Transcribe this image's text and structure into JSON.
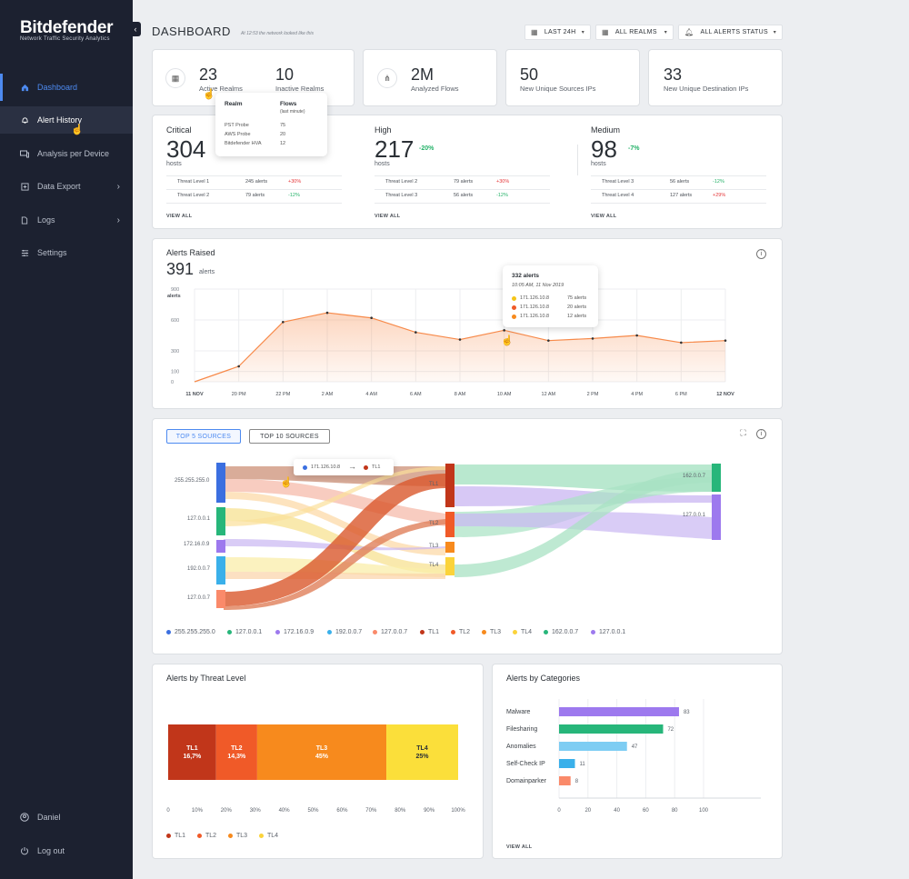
{
  "brand": {
    "name": "Bitdefender",
    "subtitle": "Network Traffic Security Analytics"
  },
  "sidebar": {
    "items": [
      {
        "label": "Dashboard",
        "icon": "home-icon"
      },
      {
        "label": "Alert History",
        "icon": "bell-icon"
      },
      {
        "label": "Analysis per Device",
        "icon": "device-icon"
      },
      {
        "label": "Data Export",
        "icon": "export-icon"
      },
      {
        "label": "Logs",
        "icon": "file-icon"
      },
      {
        "label": "Settings",
        "icon": "sliders-icon"
      }
    ],
    "user": "Daniel",
    "logout": "Log out"
  },
  "header": {
    "title": "DASHBOARD",
    "subtitle": "At 12:53 the network looked like this",
    "filters": [
      "LAST 24H",
      "ALL REALMS",
      "ALL ALERTS STATUS"
    ]
  },
  "stats": {
    "active_realms": "23",
    "active_realms_label": "Active Realms",
    "inactive_realms": "10",
    "inactive_realms_label": "Inactive Realms",
    "flows": "2M",
    "flows_label": "Analyzed Flows",
    "sources": "50",
    "sources_label": "New Unique Sources IPs",
    "destinations": "33",
    "destinations_label": "New Unique Destination IPs"
  },
  "realm_tooltip": {
    "col1": "Realm",
    "col2": "Flows",
    "col2_sub": "(last minute)",
    "rows": [
      [
        "PST Probe",
        "75"
      ],
      [
        "AWS Probe",
        "20"
      ],
      [
        "Bitdefender HVA",
        "12"
      ]
    ]
  },
  "severity": [
    {
      "title": "Critical",
      "count": "304",
      "unit": "hosts",
      "change": "",
      "rows": [
        [
          "Threat Level 1",
          "245 alerts",
          "+30%"
        ],
        [
          "Threat Level 2",
          "79 alerts",
          "-12%"
        ]
      ],
      "view": "VIEW ALL"
    },
    {
      "title": "High",
      "count": "217",
      "unit": "hosts",
      "change": "-20%",
      "rows": [
        [
          "Threat Level 2",
          "79 alerts",
          "+30%"
        ],
        [
          "Threat Level 3",
          "56 alerts",
          "-12%"
        ]
      ],
      "view": "VIEW ALL"
    },
    {
      "title": "Medium",
      "count": "98",
      "unit": "hosts",
      "change": "-7%",
      "rows": [
        [
          "Threat Level 3",
          "56 alerts",
          "-12%"
        ],
        [
          "Threat Level 4",
          "127 alerts",
          "+29%"
        ]
      ],
      "view": "VIEW ALL"
    }
  ],
  "alerts_raised": {
    "title": "Alerts Raised",
    "total": "391",
    "unit": "alerts",
    "tooltip": {
      "title": "332 alerts",
      "time": "10:05 AM, 11 Nov 2019",
      "rows": [
        [
          "171.126.10.8",
          "75 alerts",
          "#f5c518"
        ],
        [
          "171.126.10.8",
          "20 alerts",
          "#f05a28"
        ],
        [
          "171.126.10.8",
          "12 alerts",
          "#f78a1d"
        ]
      ]
    }
  },
  "sankey": {
    "tabs": [
      "TOP 5 SOURCES",
      "TOP 10 SOURCES"
    ],
    "tooltip": {
      "from": "171.126.10.8",
      "to": "TL1"
    },
    "sources": [
      "255.255.255.0",
      "127.0.0.1",
      "172.16.0.9",
      "192.0.0.7",
      "127.0.0.7"
    ],
    "levels": [
      "TL1",
      "TL2",
      "TL3",
      "TL4"
    ],
    "dests": [
      "162.0.0.7",
      "127.0.0.1"
    ],
    "legend": [
      [
        "255.255.255.0",
        "#3b6fe0"
      ],
      [
        "127.0.0.1",
        "#27b67a"
      ],
      [
        "172.16.0.9",
        "#9d79ee"
      ],
      [
        "192.0.0.7",
        "#3ab0ea"
      ],
      [
        "127.0.0.7",
        "#fa8a6a"
      ],
      [
        "TL1",
        "#c1361a"
      ],
      [
        "TL2",
        "#f05a28"
      ],
      [
        "TL3",
        "#f78a1d"
      ],
      [
        "TL4",
        "#fbd33a"
      ],
      [
        "162.0.0.7",
        "#27b67a"
      ],
      [
        "127.0.0.1",
        "#9d79ee"
      ]
    ]
  },
  "threat_level": {
    "title": "Alerts by Threat Level",
    "legend": [
      "TL1",
      "TL2",
      "TL3",
      "TL4"
    ]
  },
  "categories": {
    "title": "Alerts by Categories",
    "view": "VIEW ALL"
  },
  "chart_data": [
    {
      "type": "area",
      "title": "Alerts Raised",
      "ylabel": "alerts",
      "x": [
        "11 NOV",
        "20 PM",
        "22 PM",
        "2 AM",
        "4 AM",
        "6 AM",
        "8 AM",
        "10 AM",
        "12 AM",
        "2 PM",
        "4 PM",
        "6 PM",
        "12 NOV"
      ],
      "values": [
        0,
        150,
        580,
        670,
        620,
        480,
        410,
        500,
        400,
        420,
        450,
        380,
        400
      ],
      "ylim": [
        0,
        900
      ],
      "yticks": [
        0,
        100,
        300,
        600,
        900
      ],
      "grid": true,
      "color": "#f78a4a"
    },
    {
      "type": "bar",
      "title": "Alerts by Threat Level",
      "categories": [
        "TL1",
        "TL2",
        "TL3",
        "TL4"
      ],
      "values": [
        16.7,
        14.3,
        45,
        25
      ],
      "labels": [
        "16,7%",
        "14,3%",
        "45%",
        "25%"
      ],
      "colors": [
        "#c1361a",
        "#f05a28",
        "#f78a1d",
        "#fbdf3a"
      ],
      "xticks": [
        "0",
        "10%",
        "20%",
        "30%",
        "40%",
        "50%",
        "60%",
        "70%",
        "80%",
        "90%",
        "100%"
      ],
      "stacked": true
    },
    {
      "type": "bar",
      "title": "Alerts by Categories",
      "categories": [
        "Malware",
        "Filesharing",
        "Anomalies",
        "Self-Check IP",
        "Domainparker"
      ],
      "values": [
        83,
        72,
        47,
        11,
        8
      ],
      "colors": [
        "#9d79ee",
        "#27b67a",
        "#7ecdf3",
        "#3ab0ea",
        "#fa8a6a"
      ],
      "xticks": [
        0,
        20,
        40,
        60,
        80,
        100
      ],
      "xlim": [
        0,
        100
      ]
    }
  ]
}
